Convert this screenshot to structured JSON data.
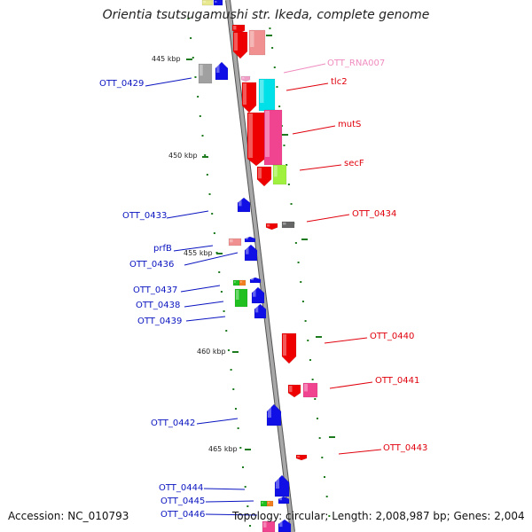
{
  "title": "Orientia tsutsugamushi str. Ikeda, complete genome",
  "footer": {
    "accession": "Accession: NC_010793",
    "topology": "Topology: circular; Length: 2,008,987 bp; Genes: 2,004"
  },
  "colors": {
    "backbone": "#8f8f8f",
    "tick": "#1e7a1e",
    "left_label": "#0a14c0",
    "right_label": "#e0000c",
    "rna_label": "#f08cc0",
    "gene_blue": "#1010e6",
    "gene_red": "#ee0000",
    "gene_pink": "#f04490",
    "gene_salmon": "#f09090",
    "gene_cyan": "#00e0e8",
    "gene_lime": "#a0f040",
    "gene_green": "#20c020",
    "gene_grey": "#a0a0a0"
  },
  "ticks": [
    "445 kbp",
    "450 kbp",
    "455 kbp",
    "460 kbp",
    "465 kbp"
  ],
  "left_labels": [
    "OTT_0429",
    "OTT_0433",
    "prfB",
    "OTT_0436",
    "OTT_0437",
    "OTT_0438",
    "OTT_0439",
    "OTT_0442",
    "OTT_0444",
    "OTT_0445",
    "OTT_0446"
  ],
  "right_labels": [
    "OTT_RNA007",
    "tlc2",
    "mutS",
    "secF",
    "OTT_0434",
    "OTT_0440",
    "OTT_0441",
    "OTT_0443"
  ]
}
